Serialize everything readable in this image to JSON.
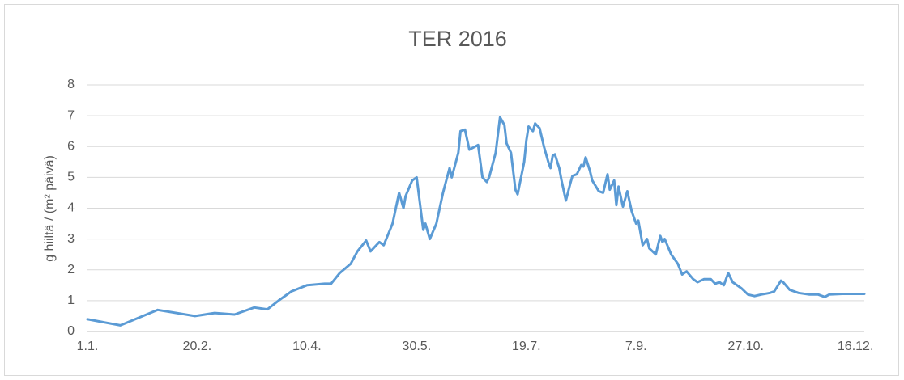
{
  "chart_data": {
    "type": "line",
    "title": "TER 2016",
    "ylabel": "g hiiltä / (m² päivä)",
    "color": "#5b9bd5",
    "grid": true,
    "xlim": [
      0,
      354
    ],
    "ylim": [
      0,
      8
    ],
    "yticks": [
      0,
      1,
      2,
      3,
      4,
      5,
      6,
      7,
      8
    ],
    "xticks": [
      {
        "value": 0,
        "label": "1.1."
      },
      {
        "value": 50,
        "label": "20.2."
      },
      {
        "value": 100,
        "label": "10.4."
      },
      {
        "value": 150,
        "label": "30.5."
      },
      {
        "value": 200,
        "label": "19.7."
      },
      {
        "value": 250,
        "label": "7.9."
      },
      {
        "value": 300,
        "label": "27.10."
      },
      {
        "value": 350,
        "label": "16.12."
      }
    ],
    "x": [
      0,
      15,
      32,
      49,
      58,
      67,
      76,
      82,
      87,
      93,
      100,
      108,
      111,
      115,
      120,
      123,
      127,
      129,
      133,
      135,
      139,
      142,
      144,
      145,
      148,
      150,
      153,
      154,
      156,
      159,
      162,
      165,
      166,
      169,
      170,
      172,
      174,
      178,
      180,
      182,
      183,
      186,
      188,
      190,
      191,
      193,
      195,
      196,
      199,
      200,
      201,
      203,
      204,
      206,
      208,
      210,
      211,
      212,
      213,
      215,
      216,
      218,
      220,
      221,
      223,
      225,
      226,
      227,
      229,
      230,
      233,
      235,
      237,
      238,
      240,
      241,
      242,
      244,
      245,
      246,
      248,
      250,
      251,
      253,
      255,
      256,
      259,
      261,
      262,
      263,
      266,
      269,
      271,
      273,
      276,
      278,
      281,
      284,
      286,
      288,
      290,
      292,
      294,
      298,
      301,
      304,
      307,
      311,
      313,
      316,
      317,
      320,
      324,
      329,
      333,
      336,
      338,
      344,
      354
    ],
    "values": [
      0.4,
      0.2,
      0.7,
      0.5,
      0.6,
      0.55,
      0.78,
      0.72,
      1.0,
      1.3,
      1.5,
      1.55,
      1.55,
      1.9,
      2.2,
      2.6,
      2.95,
      2.6,
      2.9,
      2.8,
      3.5,
      4.5,
      4.0,
      4.4,
      4.9,
      5.0,
      3.3,
      3.5,
      3.0,
      3.5,
      4.5,
      5.3,
      5.0,
      5.8,
      6.5,
      6.55,
      5.9,
      6.05,
      5.0,
      4.85,
      5.0,
      5.8,
      6.95,
      6.7,
      6.1,
      5.8,
      4.6,
      4.45,
      5.5,
      6.2,
      6.65,
      6.5,
      6.75,
      6.6,
      6.0,
      5.5,
      5.3,
      5.7,
      5.75,
      5.3,
      4.9,
      4.25,
      4.8,
      5.05,
      5.1,
      5.4,
      5.35,
      5.65,
      5.2,
      4.9,
      4.55,
      4.5,
      5.1,
      4.6,
      4.9,
      4.1,
      4.7,
      4.05,
      4.3,
      4.55,
      3.9,
      3.5,
      3.6,
      2.8,
      3.0,
      2.7,
      2.5,
      3.1,
      2.9,
      3.0,
      2.5,
      2.2,
      1.85,
      1.95,
      1.7,
      1.6,
      1.7,
      1.7,
      1.55,
      1.6,
      1.5,
      1.9,
      1.6,
      1.4,
      1.2,
      1.15,
      1.2,
      1.25,
      1.3,
      1.65,
      1.6,
      1.35,
      1.25,
      1.2,
      1.2,
      1.12,
      1.2,
      1.22,
      1.22
    ]
  }
}
